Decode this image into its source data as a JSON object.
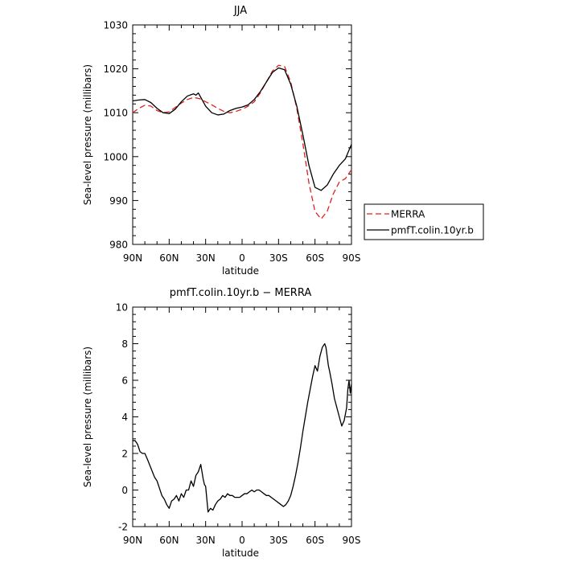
{
  "chart_data": [
    {
      "type": "line",
      "title": "JJA",
      "xlabel": "latitude",
      "ylabel": "Sea-level pressure (millibars)",
      "xlim": [
        -90,
        90
      ],
      "ylim": [
        980,
        1030
      ],
      "xticks": [
        {
          "value": -90,
          "label": "90N"
        },
        {
          "value": -60,
          "label": "60N"
        },
        {
          "value": -30,
          "label": "30N"
        },
        {
          "value": 0,
          "label": "0"
        },
        {
          "value": 30,
          "label": "30S"
        },
        {
          "value": 60,
          "label": "60S"
        },
        {
          "value": 90,
          "label": "90S"
        }
      ],
      "yticks": [
        980,
        990,
        1000,
        1010,
        1020,
        1030
      ],
      "grid": false,
      "legend_position": "right",
      "series": [
        {
          "name": "MERRA",
          "color": "#e0201c",
          "dash": "dashed",
          "x": [
            -90,
            -85,
            -80,
            -75,
            -70,
            -65,
            -60,
            -55,
            -50,
            -45,
            -40,
            -35,
            -30,
            -25,
            -20,
            -15,
            -10,
            -5,
            0,
            5,
            10,
            15,
            20,
            25,
            30,
            35,
            40,
            45,
            50,
            55,
            60,
            65,
            70,
            75,
            80,
            85,
            90
          ],
          "y": [
            1010.0,
            1011.0,
            1011.7,
            1011.5,
            1010.5,
            1010.0,
            1010.2,
            1011.2,
            1012.2,
            1013.0,
            1013.5,
            1013.2,
            1012.5,
            1011.8,
            1011.0,
            1010.3,
            1010.0,
            1010.3,
            1010.8,
            1011.5,
            1012.5,
            1014.5,
            1017.0,
            1019.5,
            1020.8,
            1020.5,
            1017.0,
            1011.0,
            1003.0,
            994.0,
            987.5,
            985.8,
            987.5,
            991.5,
            994.2,
            995.0,
            997.0
          ]
        },
        {
          "name": "pmfT.colin.10yr.b",
          "color": "#000000",
          "dash": "solid",
          "x": [
            -90,
            -85,
            -80,
            -75,
            -70,
            -65,
            -60,
            -55,
            -50,
            -45,
            -40,
            -38,
            -36,
            -34,
            -30,
            -25,
            -20,
            -15,
            -10,
            -5,
            0,
            5,
            10,
            15,
            20,
            25,
            30,
            35,
            40,
            45,
            50,
            55,
            60,
            65,
            70,
            75,
            80,
            85,
            90
          ],
          "y": [
            1012.7,
            1012.9,
            1013.0,
            1012.3,
            1011.0,
            1010.0,
            1009.8,
            1010.8,
            1012.5,
            1013.8,
            1014.3,
            1014.0,
            1014.5,
            1013.5,
            1011.5,
            1010.0,
            1009.5,
            1009.7,
            1010.5,
            1011.0,
            1011.3,
            1011.8,
            1013.0,
            1014.8,
            1017.0,
            1019.2,
            1020.2,
            1019.8,
            1016.5,
            1011.5,
            1005.0,
            998.0,
            993.0,
            992.3,
            993.5,
            996.0,
            998.0,
            999.5,
            1002.8
          ]
        }
      ]
    },
    {
      "type": "line",
      "title": "pmfT.colin.10yr.b − MERRA",
      "xlabel": "latitude",
      "ylabel": "Sea-level pressure (millibars)",
      "xlim": [
        -90,
        90
      ],
      "ylim": [
        -2,
        10
      ],
      "xticks": [
        {
          "value": -90,
          "label": "90N"
        },
        {
          "value": -60,
          "label": "60N"
        },
        {
          "value": -30,
          "label": "30N"
        },
        {
          "value": 0,
          "label": "0"
        },
        {
          "value": 30,
          "label": "30S"
        },
        {
          "value": 60,
          "label": "60S"
        },
        {
          "value": 90,
          "label": "90S"
        }
      ],
      "yticks": [
        -2,
        0,
        2,
        4,
        6,
        8,
        10
      ],
      "grid": false,
      "series": [
        {
          "color": "#000000",
          "dash": "solid",
          "x": [
            -90,
            -88,
            -86,
            -84,
            -82,
            -80,
            -78,
            -75,
            -72,
            -70,
            -68,
            -66,
            -64,
            -62,
            -60,
            -58,
            -56,
            -54,
            -52,
            -50,
            -48,
            -46,
            -44,
            -42,
            -40,
            -38,
            -36,
            -34,
            -33,
            -32,
            -31,
            -30,
            -28,
            -26,
            -24,
            -22,
            -20,
            -18,
            -16,
            -14,
            -12,
            -10,
            -8,
            -6,
            -4,
            -2,
            0,
            2,
            4,
            6,
            8,
            10,
            12,
            14,
            16,
            18,
            20,
            22,
            24,
            26,
            28,
            30,
            32,
            34,
            36,
            38,
            40,
            42,
            44,
            46,
            48,
            50,
            52,
            54,
            56,
            58,
            60,
            62,
            64,
            66,
            68,
            69,
            70,
            71,
            72,
            74,
            76,
            78,
            80,
            82,
            84,
            86,
            87,
            88,
            89,
            90
          ],
          "y": [
            2.7,
            2.7,
            2.5,
            2.1,
            2.0,
            2.0,
            1.7,
            1.2,
            0.7,
            0.5,
            0.1,
            -0.3,
            -0.5,
            -0.8,
            -1.0,
            -0.6,
            -0.5,
            -0.3,
            -0.6,
            -0.2,
            -0.4,
            0.0,
            0.0,
            0.5,
            0.2,
            0.8,
            1.0,
            1.4,
            1.0,
            0.6,
            0.3,
            0.2,
            -1.2,
            -1.0,
            -1.1,
            -0.8,
            -0.6,
            -0.5,
            -0.3,
            -0.4,
            -0.2,
            -0.3,
            -0.3,
            -0.4,
            -0.4,
            -0.4,
            -0.3,
            -0.2,
            -0.2,
            -0.1,
            0.0,
            -0.1,
            0.0,
            0.0,
            -0.1,
            -0.2,
            -0.3,
            -0.3,
            -0.4,
            -0.5,
            -0.6,
            -0.7,
            -0.8,
            -0.9,
            -0.8,
            -0.6,
            -0.3,
            0.2,
            0.8,
            1.5,
            2.3,
            3.2,
            4.0,
            4.8,
            5.5,
            6.2,
            6.8,
            6.5,
            7.3,
            7.8,
            8.0,
            7.8,
            7.3,
            6.8,
            6.5,
            5.8,
            5.0,
            4.5,
            4.0,
            3.5,
            3.8,
            4.5,
            5.5,
            6.0,
            5.3,
            5.8
          ]
        }
      ]
    }
  ]
}
